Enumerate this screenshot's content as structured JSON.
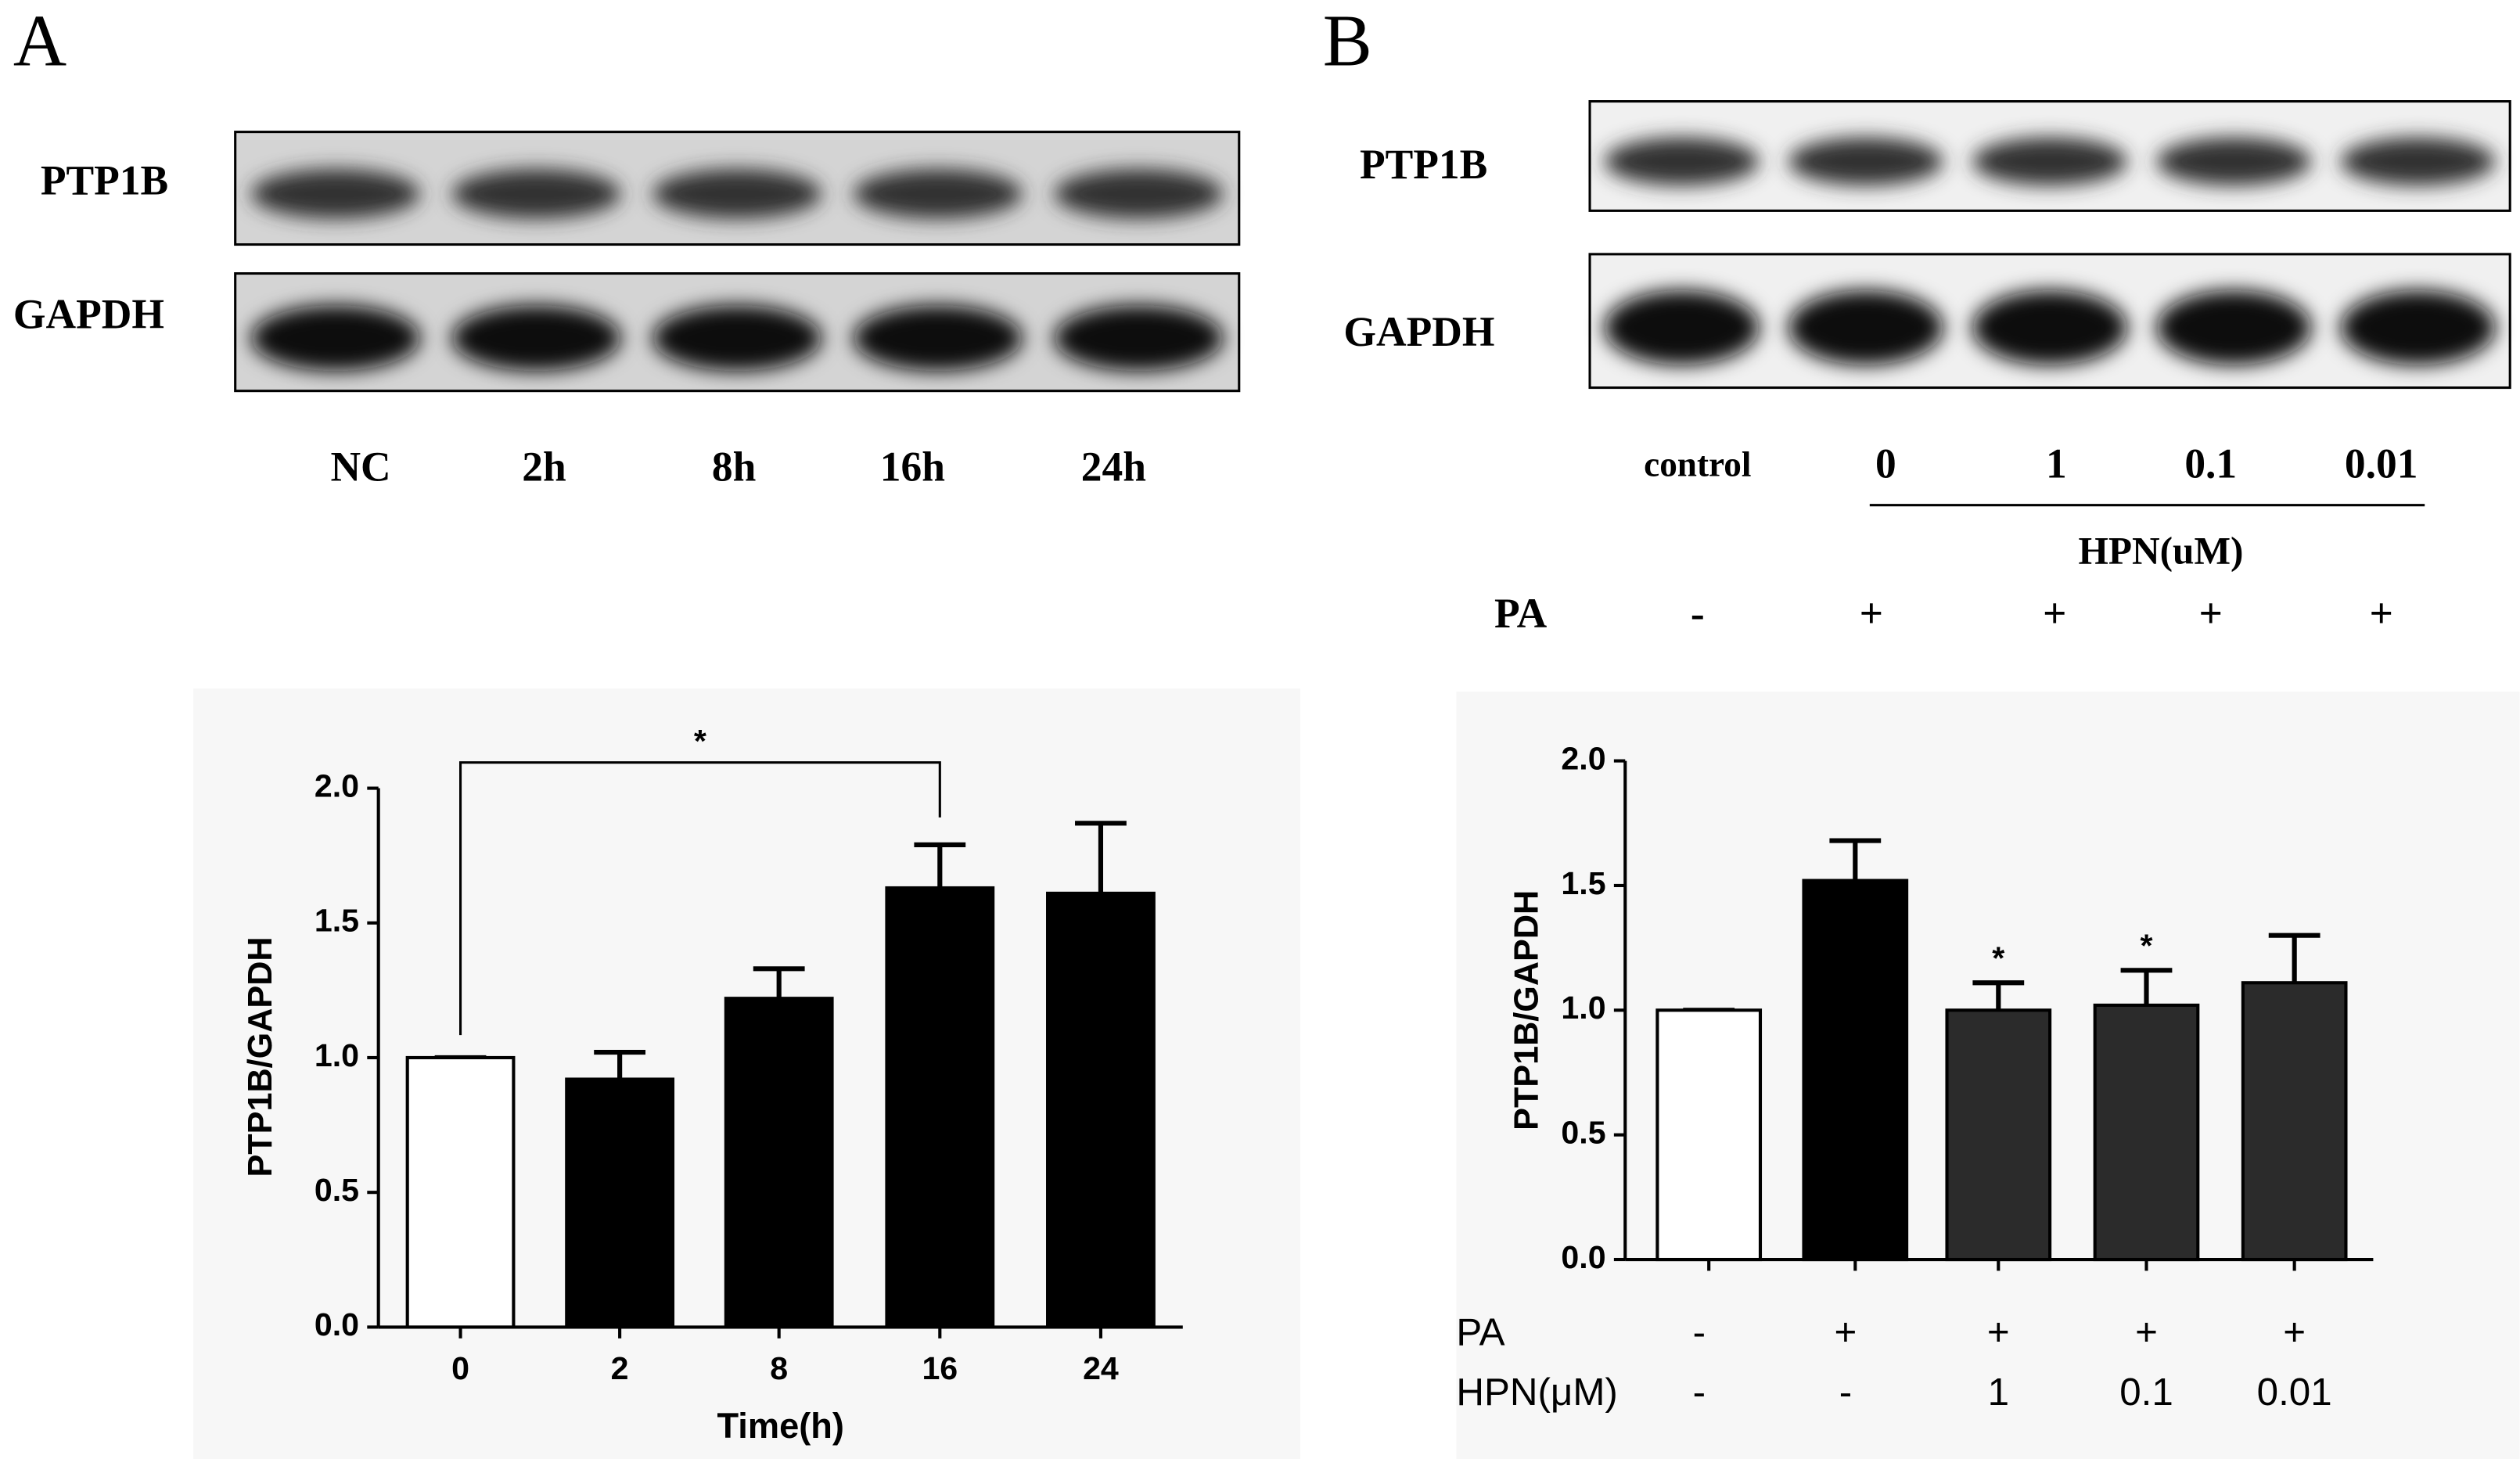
{
  "panels": [
    "A",
    "B"
  ],
  "blots": [
    {
      "rows": [
        "PTP1B",
        "GAPDH"
      ],
      "lanes": [
        "NC",
        "2h",
        "8h",
        "16h",
        "24h"
      ]
    },
    {
      "rows": [
        "PTP1B",
        "GAPDH"
      ],
      "lanes": [
        "control",
        "0",
        "1",
        "0.1",
        "0.01"
      ],
      "group_label": "HPN(uM)",
      "treatment": {
        "name": "PA",
        "labels": [
          "-",
          "+",
          "+",
          "+",
          "+"
        ]
      }
    }
  ],
  "chart_data": [
    {
      "type": "bar",
      "categories": [
        "0",
        "2",
        "8",
        "16",
        "24"
      ],
      "values": [
        1.0,
        0.92,
        1.22,
        1.63,
        1.61
      ],
      "errors": [
        0,
        0.1,
        0.11,
        0.16,
        0.26
      ],
      "colors": [
        "#ffffff",
        "#000000",
        "#000000",
        "#000000",
        "#000000"
      ],
      "xlabel": "Time(h)",
      "ylabel": "PTP1B/GAPDH",
      "annotation": "*",
      "ylim": [
        0,
        2.0
      ],
      "yticks": [
        {
          "value": 0,
          "label": "0.0"
        },
        0.5,
        {
          "value": 1,
          "label": "1.0"
        },
        1.5,
        {
          "value": 2,
          "label": "2.0"
        }
      ]
    },
    {
      "type": "bar",
      "categories": [
        null,
        null,
        null,
        null,
        null
      ],
      "values": [
        1.0,
        1.52,
        1.0,
        1.02,
        1.11
      ],
      "errors": [
        0,
        0.16,
        0.11,
        0.14,
        0.19
      ],
      "colors": [
        "#ffffff",
        "#000000",
        "#2b2b2b",
        "#2b2b2b",
        "#2b2b2b"
      ],
      "ylabel": "PTP1B/GAPDH",
      "bar_annotations": [
        null,
        null,
        "*",
        "*",
        null
      ],
      "rows": [
        {
          "name": "PA",
          "labels": [
            "-",
            "+",
            "+",
            "+",
            "+"
          ]
        },
        {
          "name": "HPN(μM)",
          "labels": [
            "-",
            "-",
            "1",
            "0.1",
            "0.01"
          ]
        }
      ],
      "ylim": [
        0,
        2.0
      ],
      "yticks": [
        {
          "value": 0,
          "label": "0.0"
        },
        0.5,
        {
          "value": 1,
          "label": "1.0"
        },
        1.5,
        {
          "value": 2,
          "label": "2.0"
        }
      ]
    }
  ]
}
